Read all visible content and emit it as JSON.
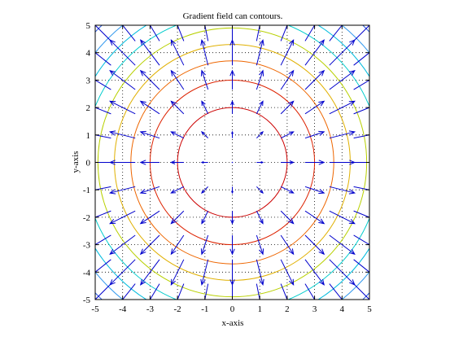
{
  "chart_data": {
    "type": "quiver_contour",
    "title": "Gradient field can contours.",
    "xlabel": "x-axis",
    "ylabel": "y-axis",
    "xlim": [
      -5,
      5
    ],
    "ylim": [
      -5,
      5
    ],
    "xticks": [
      -5,
      -4,
      -3,
      -2,
      -1,
      0,
      1,
      2,
      3,
      4,
      5
    ],
    "yticks": [
      -5,
      -4,
      -3,
      -2,
      -1,
      0,
      1,
      2,
      3,
      4,
      5
    ],
    "grid": true,
    "grid_style": "dotted",
    "contours": [
      {
        "radius": 2.0,
        "color": "#cc0000"
      },
      {
        "radius": 3.0,
        "color": "#dd2200"
      },
      {
        "radius": 3.7,
        "color": "#ee6600"
      },
      {
        "radius": 4.3,
        "color": "#e0b000"
      },
      {
        "radius": 4.9,
        "color": "#b8d000"
      },
      {
        "radius": 5.4,
        "color": "#00cccc"
      },
      {
        "radius": 5.9,
        "color": "#00bbdd"
      },
      {
        "radius": 6.4,
        "color": "#3399ee"
      },
      {
        "radius": 6.9,
        "color": "#2255dd"
      }
    ],
    "field": {
      "x_values": [
        -5,
        -4,
        -3,
        -2,
        -1,
        0,
        1,
        2,
        3,
        4,
        5
      ],
      "y_values": [
        -5,
        -4,
        -3,
        -2,
        -1,
        0,
        1,
        2,
        3,
        4,
        5
      ],
      "function": "gradient of x^2 + y^2",
      "arrow_color": "#0000cc"
    }
  }
}
